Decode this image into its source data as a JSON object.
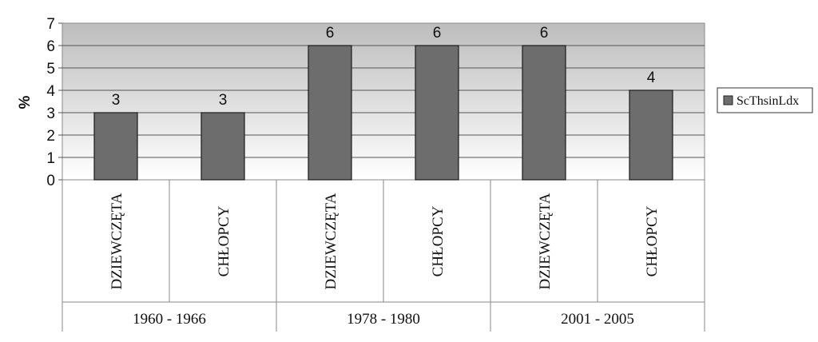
{
  "chart_data": {
    "type": "bar",
    "title": "",
    "ylabel": "%",
    "xlabel": "",
    "ylim": [
      0,
      7
    ],
    "yticks": [
      0,
      1,
      2,
      3,
      4,
      5,
      6,
      7
    ],
    "categories": [
      "DZIEWCZĘTA",
      "CHŁOPCY",
      "DZIEWCZĘTA",
      "CHŁOPCY",
      "DZIEWCZĘTA",
      "CHŁOPCY"
    ],
    "groups": [
      {
        "label": "1960 - 1966",
        "span": [
          0,
          1
        ]
      },
      {
        "label": "1978 - 1980",
        "span": [
          2,
          3
        ]
      },
      {
        "label": "2001 - 2005",
        "span": [
          4,
          5
        ]
      }
    ],
    "series": [
      {
        "name": "ScThsinLdx",
        "values": [
          3,
          3,
          6,
          6,
          6,
          4
        ],
        "color": "#6d6d6d"
      }
    ],
    "data_labels": [
      "3",
      "3",
      "6",
      "6",
      "6",
      "4"
    ],
    "grid": true,
    "legend": "right"
  }
}
